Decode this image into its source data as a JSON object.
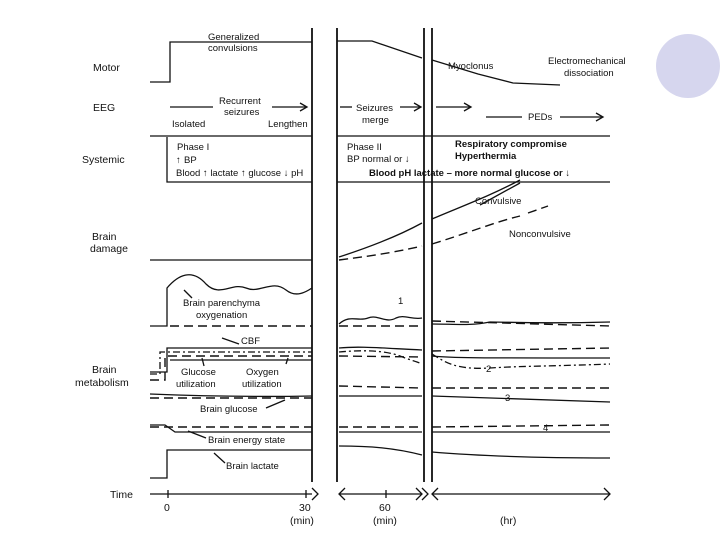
{
  "rows": {
    "motor": "Motor",
    "eeg": "EEG",
    "systemic": "Systemic",
    "brain_damage_1": "Brain",
    "brain_damage_2": "damage",
    "brain_metabolism_1": "Brain",
    "brain_metabolism_2": "metabolism",
    "time": "Time"
  },
  "motor": {
    "generalized_1": "Generalized",
    "generalized_2": "convulsions",
    "myoclonus": "Myoclonus",
    "emd_1": "Electromechanical",
    "emd_2": "dissociation"
  },
  "eeg": {
    "recurrent_1": "Recurrent",
    "recurrent_2": "seizures",
    "isolated": "Isolated",
    "lengthen": "Lengthen",
    "seizures_merge_1": "Seizures",
    "seizures_merge_2": "merge",
    "peds": "PEDs"
  },
  "systemic": {
    "phase1": "Phase I",
    "bp_up": "BP",
    "blood_line": "Blood ↑ lactate ↑ glucose ↓ pH",
    "phase2": "Phase II",
    "bp_normal": "BP normal or ↓",
    "resp": "Respiratory compromise",
    "hyperthermia": "Hyperthermia",
    "blood_line2": "Blood pH lactate – more normal glucose or ↓"
  },
  "brain_damage": {
    "convulsive": "Convulsive",
    "nonconvulsive": "Nonconvulsive"
  },
  "oxygenation": {
    "label_1": "Brain parenchyma",
    "label_2": "oxygenation",
    "marker": "1"
  },
  "metabolism": {
    "cbf": "CBF",
    "glucose_util_1": "Glucose",
    "glucose_util_2": "utilization",
    "oxygen_util_1": "Oxygen",
    "oxygen_util_2": "utilization",
    "marker_2": "2",
    "brain_glucose": "Brain glucose",
    "marker_3": "3",
    "energy_state": "Brain energy state",
    "marker_4": "4",
    "brain_lactate": "Brain lactate"
  },
  "time_axis": {
    "t0": "0",
    "t30": "30",
    "t60": "60",
    "unit_min_1": "(min)",
    "unit_min_2": "(min)",
    "unit_hr": "(hr)"
  },
  "colors": {
    "deco_circle": "#d6d6ee"
  }
}
